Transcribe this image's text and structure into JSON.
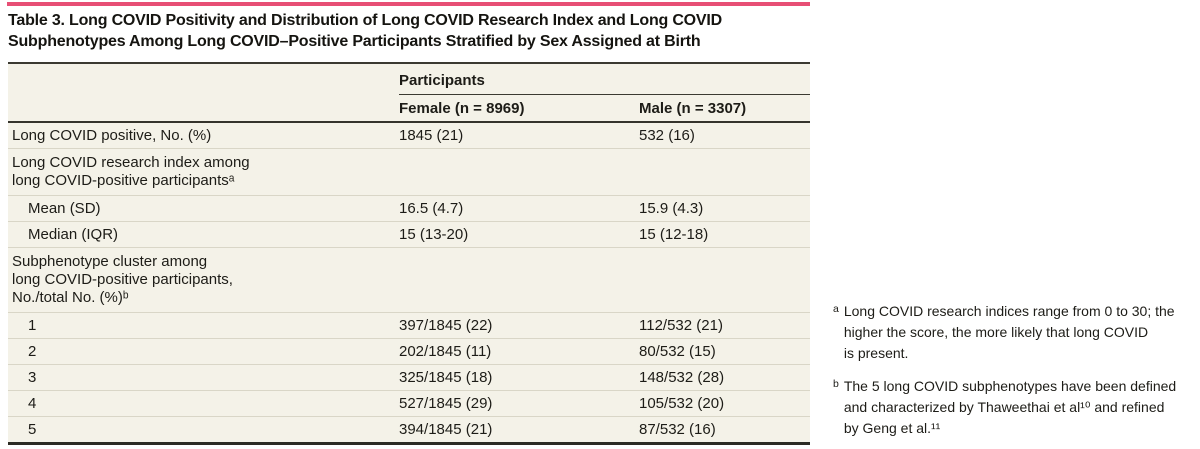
{
  "colors": {
    "accent_pink": "#e74f75",
    "table_background": "#f4f2e8",
    "rule_dark": "#35342c",
    "row_separator": "#d9d6c7"
  },
  "title": "Table 3. Long COVID Positivity and Distribution of Long COVID Research Index and Long COVID\nSubphenotypes Among Long COVID–Positive Participants Stratified by Sex Assigned at Birth",
  "table": {
    "group_header": "Participants",
    "columns": [
      "Female (n = 8969)",
      "Male (n = 3307)"
    ],
    "rows": [
      {
        "label": "Long COVID positive, No. (%)",
        "female": "1845 (21)",
        "male": "532 (16)"
      },
      {
        "label": "Long COVID research index among\nlong COVID-positive participantsᵃ"
      },
      {
        "label": "Mean (SD)",
        "female": "16.5 (4.7)",
        "male": "15.9 (4.3)"
      },
      {
        "label": "Median (IQR)",
        "female": "15 (13-20)",
        "male": "15 (12-18)"
      },
      {
        "label": "Subphenotype cluster among\nlong COVID-positive participants,\nNo./total No. (%)ᵇ"
      },
      {
        "label": "1",
        "female": "397/1845 (22)",
        "male": "112/532 (21)"
      },
      {
        "label": "2",
        "female": "202/1845 (11)",
        "male": "80/532 (15)"
      },
      {
        "label": "3",
        "female": "325/1845 (18)",
        "male": "148/532 (28)"
      },
      {
        "label": "4",
        "female": "527/1845 (29)",
        "male": "105/532 (20)"
      },
      {
        "label": "5",
        "female": "394/1845 (21)",
        "male": "87/532 (16)"
      }
    ]
  },
  "footnotes": [
    {
      "marker": "a",
      "text": "Long COVID research indices range from 0 to 30; the\nhigher the score, the more likely that long COVID\nis present."
    },
    {
      "marker": "b",
      "text": "The 5 long COVID subphenotypes have been defined\nand characterized by Thaweethai et al¹⁰ and refined\nby Geng et al.¹¹"
    }
  ]
}
